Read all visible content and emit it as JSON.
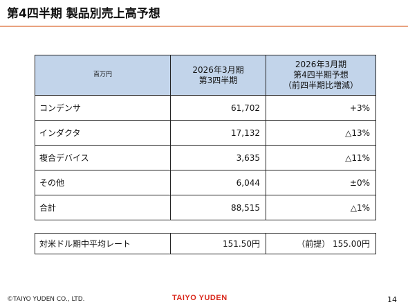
{
  "page": {
    "title": "第4四半期 製品別売上高予想"
  },
  "table": {
    "headers": {
      "unit": "百万円",
      "col1_line1": "2026年3月期",
      "col1_line2": "第3四半期",
      "col2_line1": "2026年3月期",
      "col2_line2": "第4四半期予想",
      "col2_line3": "（前四半期比増減）"
    },
    "rows": [
      {
        "label": "コンデンサ",
        "q3": "61,702",
        "change": "+3%"
      },
      {
        "label": "インダクタ",
        "q3": "17,132",
        "change": "△13%"
      },
      {
        "label": "複合デバイス",
        "q3": "3,635",
        "change": "△11%"
      },
      {
        "label": "その他",
        "q3": "6,044",
        "change": "±0%"
      },
      {
        "label": "合計",
        "q3": "88,515",
        "change": "△1%"
      }
    ]
  },
  "rate": {
    "label": "対米ドル期中平均レート",
    "q3": "151.50円",
    "q4": "（前提） 155.00円"
  },
  "footer": {
    "copyright": "©TAIYO YUDEN CO., LTD.",
    "logo": "TAIYO YUDEN",
    "page_number": "14"
  },
  "colors": {
    "accent_rule": "#e9a27f",
    "header_fill": "#c2d4ea",
    "logo_red": "#d9281c"
  }
}
